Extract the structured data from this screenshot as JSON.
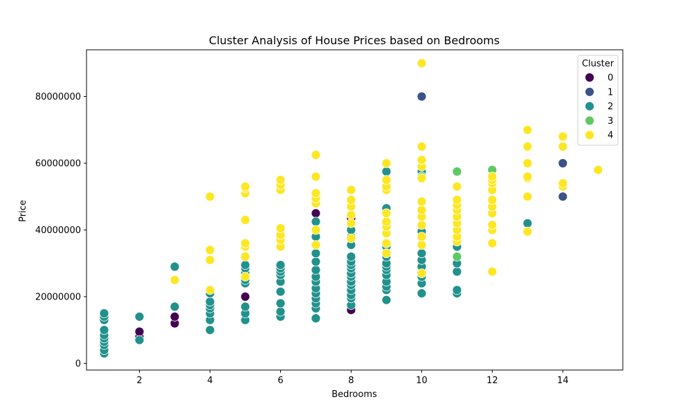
{
  "chart_data": {
    "type": "scatter",
    "title": "Cluster Analysis of House Prices based on Bedrooms",
    "xlabel": "Bedrooms",
    "ylabel": "Price",
    "xlim": [
      0.5,
      15.7
    ],
    "ylim": [
      -2000000,
      94000000
    ],
    "xticks": [
      2,
      4,
      6,
      8,
      10,
      12,
      14
    ],
    "yticks": [
      0,
      20000000,
      40000000,
      60000000,
      80000000
    ],
    "ytick_labels": [
      "0",
      "20000000",
      "40000000",
      "60000000",
      "80000000"
    ],
    "grid": false,
    "legend": {
      "title": "Cluster",
      "position": "top-right"
    },
    "series": [
      {
        "name": "0",
        "color": "#440154",
        "points": [
          [
            2,
            8000000
          ],
          [
            2,
            9500000
          ],
          [
            3,
            12000000
          ],
          [
            3,
            14000000
          ],
          [
            5,
            20000000
          ],
          [
            7,
            45000000
          ],
          [
            8,
            16000000
          ],
          [
            8,
            43500000
          ]
        ]
      },
      {
        "name": "1",
        "color": "#3b528b",
        "points": [
          [
            10,
            80000000
          ],
          [
            14,
            50000000
          ],
          [
            14,
            60000000
          ]
        ]
      },
      {
        "name": "2",
        "color": "#21918c",
        "points": [
          [
            1,
            3000000
          ],
          [
            1,
            4000000
          ],
          [
            1,
            5500000
          ],
          [
            1,
            6500000
          ],
          [
            1,
            7500000
          ],
          [
            1,
            8500000
          ],
          [
            1,
            10000000
          ],
          [
            1,
            13000000
          ],
          [
            1,
            14000000
          ],
          [
            1,
            15000000
          ],
          [
            2,
            7000000
          ],
          [
            2,
            14000000
          ],
          [
            3,
            17000000
          ],
          [
            3,
            29000000
          ],
          [
            4,
            10000000
          ],
          [
            4,
            13000000
          ],
          [
            4,
            15000000
          ],
          [
            4,
            16500000
          ],
          [
            4,
            17500000
          ],
          [
            4,
            18500000
          ],
          [
            4,
            21000000
          ],
          [
            5,
            13000000
          ],
          [
            5,
            15000000
          ],
          [
            5,
            17000000
          ],
          [
            5,
            24000000
          ],
          [
            5,
            25000000
          ],
          [
            5,
            27000000
          ],
          [
            5,
            28500000
          ],
          [
            5,
            29500000
          ],
          [
            6,
            14000000
          ],
          [
            6,
            15500000
          ],
          [
            6,
            18000000
          ],
          [
            6,
            21500000
          ],
          [
            6,
            24500000
          ],
          [
            6,
            26500000
          ],
          [
            6,
            27500000
          ],
          [
            6,
            28500000
          ],
          [
            6,
            29500000
          ],
          [
            7,
            13500000
          ],
          [
            7,
            16500000
          ],
          [
            7,
            18000000
          ],
          [
            7,
            19500000
          ],
          [
            7,
            21000000
          ],
          [
            7,
            22500000
          ],
          [
            7,
            24500000
          ],
          [
            7,
            26000000
          ],
          [
            7,
            28000000
          ],
          [
            7,
            30500000
          ],
          [
            7,
            33000000
          ],
          [
            7,
            35500000
          ],
          [
            7,
            38000000
          ],
          [
            7,
            40000000
          ],
          [
            7,
            42500000
          ],
          [
            8,
            17500000
          ],
          [
            8,
            19500000
          ],
          [
            8,
            20500000
          ],
          [
            8,
            22000000
          ],
          [
            8,
            23500000
          ],
          [
            8,
            24500000
          ],
          [
            8,
            26000000
          ],
          [
            8,
            27000000
          ],
          [
            8,
            28500000
          ],
          [
            8,
            29500000
          ],
          [
            8,
            30500000
          ],
          [
            8,
            32000000
          ],
          [
            8,
            35500000
          ],
          [
            8,
            38000000
          ],
          [
            8,
            40000000
          ],
          [
            9,
            19000000
          ],
          [
            9,
            22000000
          ],
          [
            9,
            23000000
          ],
          [
            9,
            24500000
          ],
          [
            9,
            26500000
          ],
          [
            9,
            28000000
          ],
          [
            9,
            29000000
          ],
          [
            9,
            30000000
          ],
          [
            9,
            32000000
          ],
          [
            9,
            35000000
          ],
          [
            9,
            46500000
          ],
          [
            9,
            57500000
          ],
          [
            10,
            21000000
          ],
          [
            10,
            24000000
          ],
          [
            10,
            26000000
          ],
          [
            10,
            29000000
          ],
          [
            10,
            31000000
          ],
          [
            10,
            33000000
          ],
          [
            10,
            39500000
          ],
          [
            10,
            57500000
          ],
          [
            11,
            21000000
          ],
          [
            11,
            22000000
          ],
          [
            11,
            27500000
          ],
          [
            11,
            30000000
          ],
          [
            11,
            35000000
          ],
          [
            13,
            42000000
          ]
        ]
      },
      {
        "name": "3",
        "color": "#5ec962",
        "points": [
          [
            10,
            56000000
          ],
          [
            11,
            32000000
          ],
          [
            11,
            57500000
          ],
          [
            12,
            58000000
          ]
        ]
      },
      {
        "name": "4",
        "color": "#fde725",
        "points": [
          [
            3,
            25000000
          ],
          [
            4,
            22000000
          ],
          [
            4,
            31000000
          ],
          [
            4,
            34000000
          ],
          [
            4,
            50000000
          ],
          [
            5,
            26000000
          ],
          [
            5,
            32000000
          ],
          [
            5,
            35000000
          ],
          [
            5,
            36000000
          ],
          [
            5,
            43000000
          ],
          [
            5,
            51000000
          ],
          [
            5,
            52500000
          ],
          [
            5,
            53000000
          ],
          [
            6,
            35000000
          ],
          [
            6,
            37000000
          ],
          [
            6,
            38500000
          ],
          [
            6,
            40500000
          ],
          [
            6,
            52000000
          ],
          [
            6,
            53500000
          ],
          [
            6,
            55000000
          ],
          [
            7,
            35500000
          ],
          [
            7,
            40000000
          ],
          [
            7,
            48000000
          ],
          [
            7,
            49500000
          ],
          [
            7,
            51000000
          ],
          [
            7,
            56000000
          ],
          [
            7,
            62500000
          ],
          [
            8,
            37500000
          ],
          [
            8,
            42000000
          ],
          [
            8,
            44500000
          ],
          [
            8,
            47000000
          ],
          [
            8,
            49000000
          ],
          [
            8,
            52000000
          ],
          [
            9,
            33000000
          ],
          [
            9,
            36000000
          ],
          [
            9,
            39000000
          ],
          [
            9,
            41000000
          ],
          [
            9,
            42500000
          ],
          [
            9,
            45000000
          ],
          [
            9,
            52000000
          ],
          [
            9,
            53000000
          ],
          [
            9,
            55000000
          ],
          [
            9,
            60000000
          ],
          [
            10,
            27000000
          ],
          [
            10,
            35500000
          ],
          [
            10,
            38000000
          ],
          [
            10,
            41500000
          ],
          [
            10,
            44000000
          ],
          [
            10,
            46000000
          ],
          [
            10,
            48500000
          ],
          [
            10,
            55500000
          ],
          [
            10,
            59000000
          ],
          [
            10,
            61000000
          ],
          [
            10,
            65000000
          ],
          [
            10,
            90000000
          ],
          [
            11,
            36500000
          ],
          [
            11,
            38000000
          ],
          [
            11,
            40000000
          ],
          [
            11,
            42000000
          ],
          [
            11,
            44000000
          ],
          [
            11,
            46000000
          ],
          [
            11,
            47500000
          ],
          [
            11,
            49000000
          ],
          [
            11,
            53000000
          ],
          [
            12,
            27500000
          ],
          [
            12,
            36000000
          ],
          [
            12,
            40000000
          ],
          [
            12,
            41500000
          ],
          [
            12,
            45000000
          ],
          [
            12,
            47000000
          ],
          [
            12,
            49000000
          ],
          [
            12,
            52000000
          ],
          [
            12,
            54000000
          ],
          [
            12,
            55000000
          ],
          [
            12,
            56000000
          ],
          [
            13,
            39500000
          ],
          [
            13,
            50000000
          ],
          [
            13,
            55500000
          ],
          [
            13,
            56000000
          ],
          [
            13,
            60000000
          ],
          [
            13,
            65000000
          ],
          [
            13,
            70000000
          ],
          [
            14,
            53000000
          ],
          [
            14,
            54000000
          ],
          [
            14,
            65000000
          ],
          [
            14,
            68000000
          ],
          [
            15,
            58000000
          ]
        ]
      }
    ]
  }
}
